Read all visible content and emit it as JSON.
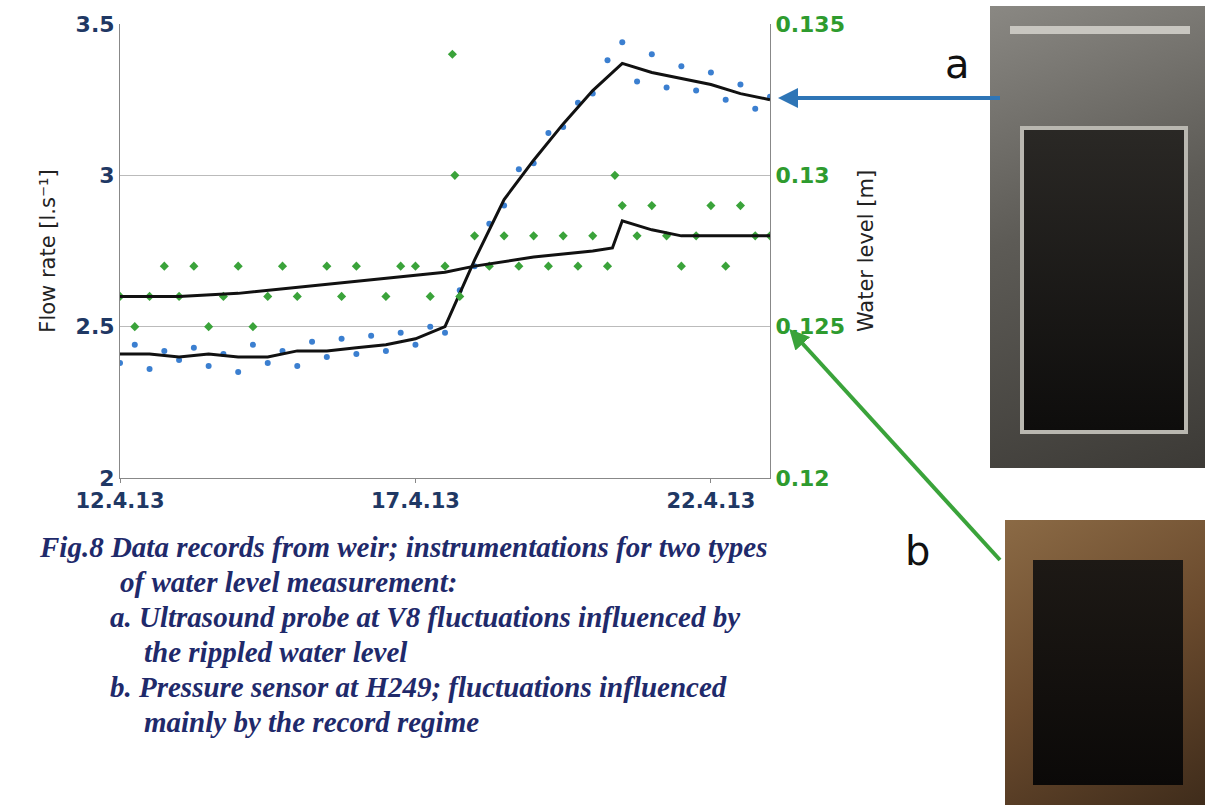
{
  "chart_data": {
    "type": "scatter",
    "y_label": "Flow rate [l.s⁻¹]",
    "y2_label": "Water level [m]",
    "xlim": [
      "2013-04-12",
      "2013-04-23"
    ],
    "xticks": [
      {
        "value": "2013-04-12",
        "label": "12.4.13"
      },
      {
        "value": "2013-04-17",
        "label": "17.4.13"
      },
      {
        "value": "2013-04-22",
        "label": "22.4.13"
      }
    ],
    "ylim": [
      2,
      3.5
    ],
    "yticks": [
      2,
      2.5,
      3,
      3.5
    ],
    "y2lim": [
      0.12,
      0.135
    ],
    "y2ticks": [
      0.12,
      0.125,
      0.13,
      0.135
    ],
    "grid": true,
    "series": [
      {
        "type": "scatter",
        "marker": "diamond",
        "color": "#3aa33a",
        "axis": "y2",
        "x": [
          "2013-04-12 00:00",
          "2013-04-12 06:00",
          "2013-04-12 12:00",
          "2013-04-12 18:00",
          "2013-04-13 00:00",
          "2013-04-13 06:00",
          "2013-04-13 12:00",
          "2013-04-13 18:00",
          "2013-04-14 00:00",
          "2013-04-14 06:00",
          "2013-04-14 12:00",
          "2013-04-14 18:00",
          "2013-04-15 00:00",
          "2013-04-15 12:00",
          "2013-04-15 18:00",
          "2013-04-16 00:00",
          "2013-04-16 12:00",
          "2013-04-16 18:00",
          "2013-04-17 00:00",
          "2013-04-17 06:00",
          "2013-04-17 12:00",
          "2013-04-17 15:00",
          "2013-04-17 16:00",
          "2013-04-17 18:00",
          "2013-04-18 00:00",
          "2013-04-18 06:00",
          "2013-04-18 12:00",
          "2013-04-18 18:00",
          "2013-04-19 00:00",
          "2013-04-19 06:00",
          "2013-04-19 12:00",
          "2013-04-19 18:00",
          "2013-04-20 00:00",
          "2013-04-20 06:00",
          "2013-04-20 09:00",
          "2013-04-20 12:00",
          "2013-04-20 18:00",
          "2013-04-21 00:00",
          "2013-04-21 06:00",
          "2013-04-21 12:00",
          "2013-04-21 18:00",
          "2013-04-22 00:00",
          "2013-04-22 06:00",
          "2013-04-22 12:00",
          "2013-04-22 18:00",
          "2013-04-23 00:00"
        ],
        "values": [
          0.126,
          0.125,
          0.126,
          0.127,
          0.126,
          0.127,
          0.125,
          0.126,
          0.127,
          0.125,
          0.126,
          0.127,
          0.126,
          0.127,
          0.126,
          0.127,
          0.126,
          0.127,
          0.127,
          0.126,
          0.127,
          0.134,
          0.13,
          0.126,
          0.128,
          0.127,
          0.128,
          0.127,
          0.128,
          0.127,
          0.128,
          0.127,
          0.128,
          0.127,
          0.13,
          0.129,
          0.128,
          0.129,
          0.128,
          0.127,
          0.128,
          0.129,
          0.127,
          0.129,
          0.128,
          0.128
        ]
      },
      {
        "type": "scatter",
        "marker": "circle",
        "color": "#3b7fd0",
        "axis": "y",
        "x": [
          "2013-04-12 00:00",
          "2013-04-12 06:00",
          "2013-04-12 12:00",
          "2013-04-12 18:00",
          "2013-04-13 00:00",
          "2013-04-13 06:00",
          "2013-04-13 12:00",
          "2013-04-13 18:00",
          "2013-04-14 00:00",
          "2013-04-14 06:00",
          "2013-04-14 12:00",
          "2013-04-14 18:00",
          "2013-04-15 00:00",
          "2013-04-15 06:00",
          "2013-04-15 12:00",
          "2013-04-15 18:00",
          "2013-04-16 00:00",
          "2013-04-16 06:00",
          "2013-04-16 12:00",
          "2013-04-16 18:00",
          "2013-04-17 00:00",
          "2013-04-17 06:00",
          "2013-04-17 12:00",
          "2013-04-17 18:00",
          "2013-04-18 00:00",
          "2013-04-18 06:00",
          "2013-04-18 12:00",
          "2013-04-18 18:00",
          "2013-04-19 00:00",
          "2013-04-19 06:00",
          "2013-04-19 12:00",
          "2013-04-19 18:00",
          "2013-04-20 00:00",
          "2013-04-20 06:00",
          "2013-04-20 12:00",
          "2013-04-20 18:00",
          "2013-04-21 00:00",
          "2013-04-21 06:00",
          "2013-04-21 12:00",
          "2013-04-21 18:00",
          "2013-04-22 00:00",
          "2013-04-22 06:00",
          "2013-04-22 12:00",
          "2013-04-22 18:00",
          "2013-04-23 00:00"
        ],
        "values": [
          2.38,
          2.44,
          2.36,
          2.42,
          2.39,
          2.43,
          2.37,
          2.41,
          2.35,
          2.44,
          2.38,
          2.42,
          2.37,
          2.45,
          2.4,
          2.46,
          2.41,
          2.47,
          2.42,
          2.48,
          2.44,
          2.5,
          2.48,
          2.62,
          2.7,
          2.84,
          2.9,
          3.02,
          3.04,
          3.14,
          3.16,
          3.24,
          3.27,
          3.38,
          3.44,
          3.31,
          3.4,
          3.29,
          3.36,
          3.28,
          3.34,
          3.25,
          3.3,
          3.22,
          3.26
        ]
      },
      {
        "type": "line",
        "line_style": "solid",
        "color": "#111111",
        "axis": "y",
        "x": [
          "2013-04-12 00:00",
          "2013-04-12 12:00",
          "2013-04-13 00:00",
          "2013-04-13 12:00",
          "2013-04-14 00:00",
          "2013-04-14 12:00",
          "2013-04-15 00:00",
          "2013-04-15 12:00",
          "2013-04-16 00:00",
          "2013-04-16 12:00",
          "2013-04-17 00:00",
          "2013-04-17 12:00",
          "2013-04-18 00:00",
          "2013-04-18 12:00",
          "2013-04-19 00:00",
          "2013-04-19 12:00",
          "2013-04-20 00:00",
          "2013-04-20 12:00",
          "2013-04-21 00:00",
          "2013-04-21 12:00",
          "2013-04-22 00:00",
          "2013-04-22 12:00",
          "2013-04-23 00:00"
        ],
        "values": [
          2.41,
          2.41,
          2.4,
          2.41,
          2.4,
          2.4,
          2.42,
          2.42,
          2.43,
          2.44,
          2.46,
          2.5,
          2.72,
          2.92,
          3.05,
          3.17,
          3.28,
          3.37,
          3.34,
          3.32,
          3.3,
          3.27,
          3.25
        ]
      },
      {
        "type": "line",
        "line_style": "solid",
        "color": "#111111",
        "axis": "y2",
        "x": [
          "2013-04-12 00:00",
          "2013-04-13 00:00",
          "2013-04-14 00:00",
          "2013-04-15 00:00",
          "2013-04-16 00:00",
          "2013-04-17 00:00",
          "2013-04-17 12:00",
          "2013-04-18 00:00",
          "2013-04-19 00:00",
          "2013-04-20 00:00",
          "2013-04-20 08:00",
          "2013-04-20 12:00",
          "2013-04-21 00:00",
          "2013-04-21 12:00",
          "2013-04-22 00:00",
          "2013-04-23 00:00"
        ],
        "values": [
          0.126,
          0.126,
          0.1261,
          0.1263,
          0.1265,
          0.1267,
          0.1268,
          0.127,
          0.1273,
          0.1275,
          0.1276,
          0.1285,
          0.1282,
          0.128,
          0.128,
          0.128
        ]
      }
    ]
  },
  "photos": [
    {
      "label": "a",
      "color": "#2e75b6"
    },
    {
      "label": "b",
      "color": "#3aa33a"
    }
  ],
  "caption": {
    "title": "Fig.8 Data records from weir; instrumentations for two types of water level measurement:",
    "items": [
      "a. Ultrasound probe at V8 fluctuations influenced by the rippled water level",
      "b. Pressure sensor at H249; fluctuations influenced mainly by the record regime"
    ]
  }
}
